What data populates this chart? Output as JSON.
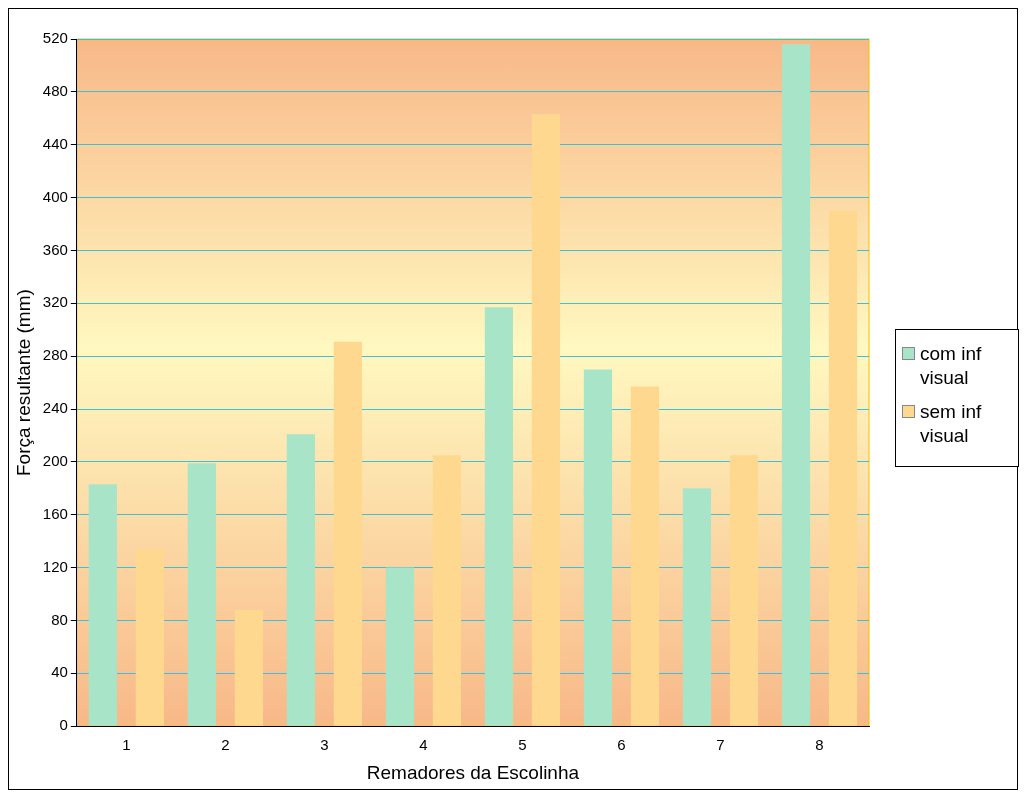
{
  "chart_data": {
    "type": "bar",
    "xlabel": "Remadores da Escolinha",
    "ylabel": "Força resultante (mm)",
    "categories": [
      "1",
      "2",
      "3",
      "4",
      "5",
      "6",
      "7",
      "8"
    ],
    "series": [
      {
        "name": "com inf visual",
        "color": "#a8e4c8",
        "values": [
          183,
          199,
          221,
          120,
          317,
          270,
          180,
          516
        ]
      },
      {
        "name": "sem inf visual",
        "color": "#ffd890",
        "values": [
          134,
          88,
          291,
          205,
          463,
          257,
          205,
          390
        ]
      }
    ],
    "ylim": [
      0,
      520
    ],
    "yticks": [
      0,
      40,
      80,
      120,
      160,
      200,
      240,
      280,
      320,
      360,
      400,
      440,
      480,
      520
    ],
    "grid": "y",
    "legend": "right"
  }
}
